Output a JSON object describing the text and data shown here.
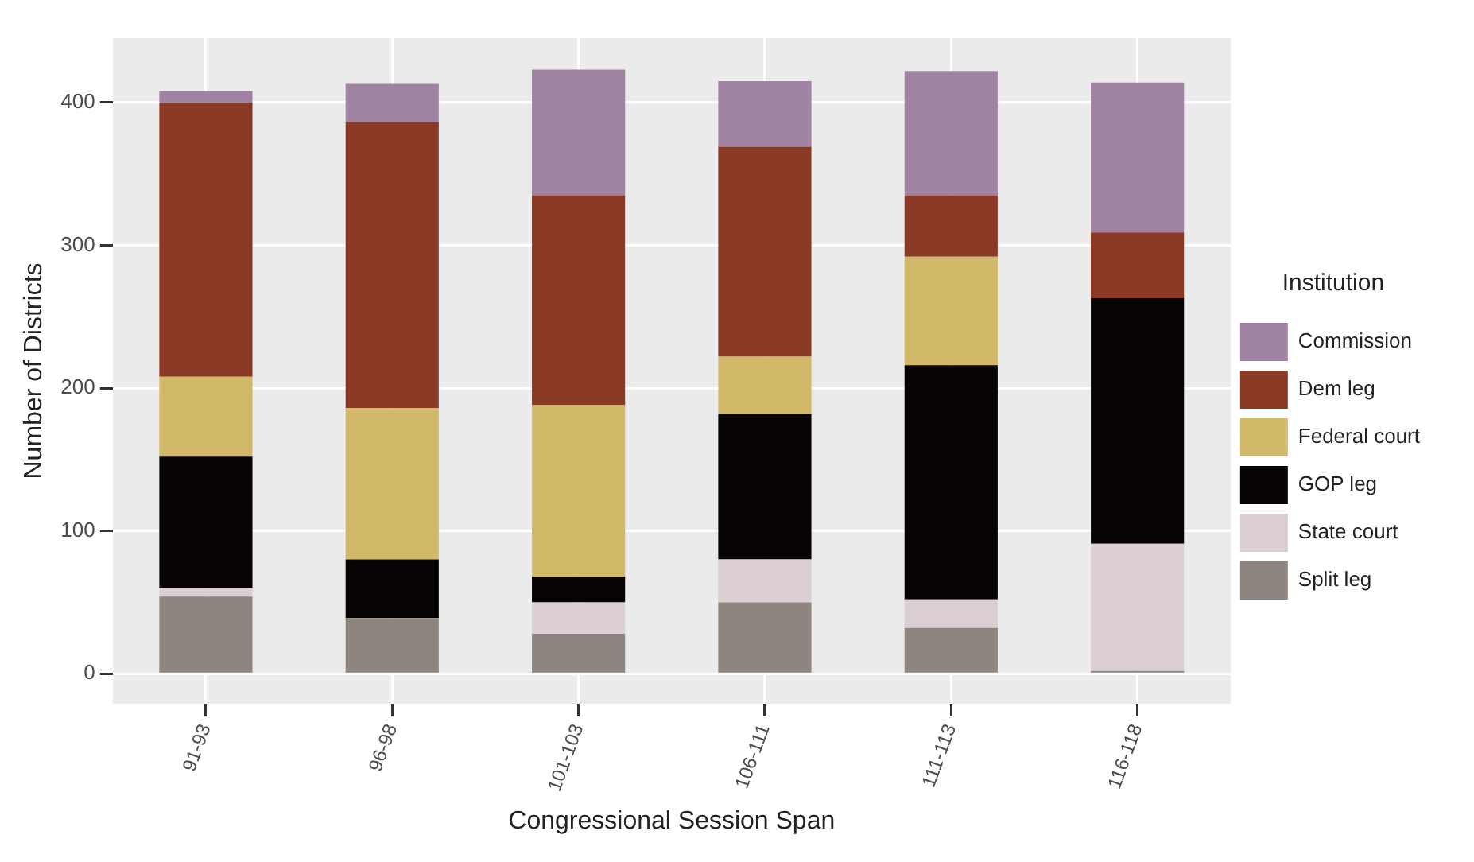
{
  "chart_data": {
    "type": "bar",
    "stacked": true,
    "xlabel": "Congressional Session Span",
    "ylabel": "Number of Districts",
    "legend_title": "Institution",
    "legend": "right",
    "grid": true,
    "categories": [
      "91-93",
      "96-98",
      "101-103",
      "106-111",
      "111-113",
      "116-118"
    ],
    "ylim": [
      -21,
      445
    ],
    "yticks": [
      0,
      100,
      200,
      300,
      400
    ],
    "series": [
      {
        "name": "Split leg",
        "color": "#8f857f",
        "values": [
          54,
          39,
          28,
          50,
          32,
          2
        ]
      },
      {
        "name": "State court",
        "color": "#dccfd4",
        "values": [
          6,
          0,
          22,
          30,
          20,
          89
        ]
      },
      {
        "name": "GOP leg",
        "color": "#070303",
        "values": [
          92,
          41,
          18,
          102,
          164,
          172
        ]
      },
      {
        "name": "Federal court",
        "color": "#d2b96a",
        "values": [
          56,
          106,
          120,
          40,
          76,
          0
        ]
      },
      {
        "name": "Dem leg",
        "color": "#8b3a26",
        "values": [
          192,
          200,
          147,
          147,
          43,
          46
        ]
      },
      {
        "name": "Commission",
        "color": "#a083a3",
        "values": [
          8,
          27,
          88,
          46,
          87,
          105
        ]
      }
    ]
  }
}
